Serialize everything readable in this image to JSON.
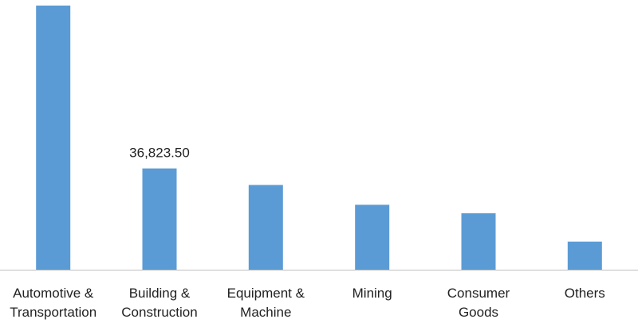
{
  "chart_data": {
    "type": "bar",
    "categories": [
      [
        "Automotive &",
        "Transportation"
      ],
      [
        "Building &",
        "Construction"
      ],
      [
        "Equipment &",
        "Machine"
      ],
      [
        "Mining"
      ],
      [
        "Consumer",
        "Goods"
      ],
      [
        "Others"
      ]
    ],
    "values": [
      96000,
      36823.5,
      30800,
      23600,
      20500,
      10200
    ],
    "data_labels": [
      "",
      "36,823.50",
      "",
      "",
      "",
      ""
    ],
    "bar_color": "#5b9bd5",
    "axis_color": "#bfbfbf",
    "ylim": [
      0,
      96000
    ],
    "grid": false,
    "legend": "none"
  }
}
